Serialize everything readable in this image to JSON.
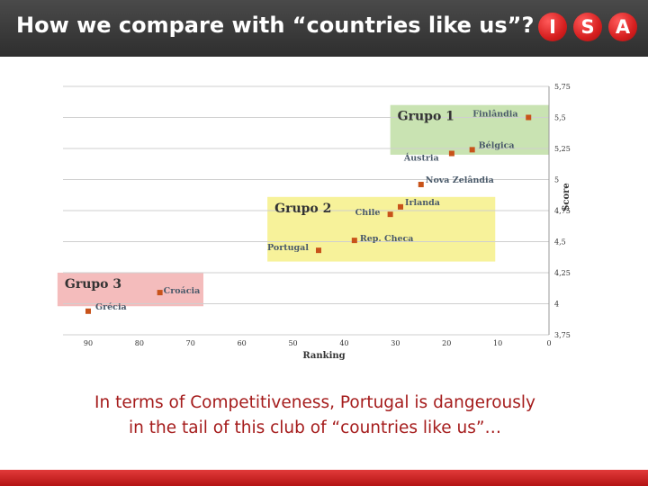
{
  "header": {
    "title": "How we compare with “countries like us”?",
    "logo_letters": [
      "I",
      "S",
      "A"
    ],
    "logo_color": "#d61f1f"
  },
  "chart_data": {
    "type": "scatter",
    "xlabel": "Ranking",
    "ylabel": "Score",
    "xlim": [
      0,
      90
    ],
    "x_reversed": true,
    "ylim": [
      3.75,
      5.75
    ],
    "x_ticks": [
      "90",
      "80",
      "70",
      "60",
      "50",
      "40",
      "30",
      "20",
      "10",
      "0"
    ],
    "y_ticks": [
      "3,75",
      "4",
      "4,25",
      "4,5",
      "4,75",
      "5",
      "5,25",
      "5,5",
      "5,75"
    ],
    "grid": true,
    "marker_color": "#c8531a",
    "groups": [
      {
        "name": "Grupo 1",
        "color": "#c9e3b2",
        "x_range": [
          0,
          31
        ],
        "y_range": [
          5.2,
          5.6
        ]
      },
      {
        "name": "Grupo 2",
        "color": "#f7f29a",
        "x_range": [
          10.5,
          55
        ],
        "y_range": [
          4.34,
          4.86
        ]
      },
      {
        "name": "Grupo 3",
        "color": "#f4bcbc",
        "x_range": [
          67.5,
          96
        ],
        "y_range": [
          3.98,
          4.25
        ]
      }
    ],
    "points": [
      {
        "label": "Finlândia",
        "x": 4,
        "y": 5.5,
        "group": 0
      },
      {
        "label": "Bélgica",
        "x": 15,
        "y": 5.24,
        "group": 0
      },
      {
        "label": "Áustria",
        "x": 19,
        "y": 5.21,
        "group": 0
      },
      {
        "label": "Nova Zelândia",
        "x": 25,
        "y": 4.96,
        "group": 1
      },
      {
        "label": "Irlanda",
        "x": 29,
        "y": 4.78,
        "group": 1
      },
      {
        "label": "Chile",
        "x": 31,
        "y": 4.72,
        "group": 1
      },
      {
        "label": "Rep. Checa",
        "x": 38,
        "y": 4.51,
        "group": 1
      },
      {
        "label": "Portugal",
        "x": 45,
        "y": 4.43,
        "group": 1
      },
      {
        "label": "Croácia",
        "x": 76,
        "y": 4.09,
        "group": 2
      },
      {
        "label": "Grécia",
        "x": 90,
        "y": 3.94,
        "group": 2
      }
    ]
  },
  "caption": {
    "line1": "In terms of Competitiveness, Portugal is dangerously",
    "line2": "in the tail of this club of “countries like us”…"
  }
}
